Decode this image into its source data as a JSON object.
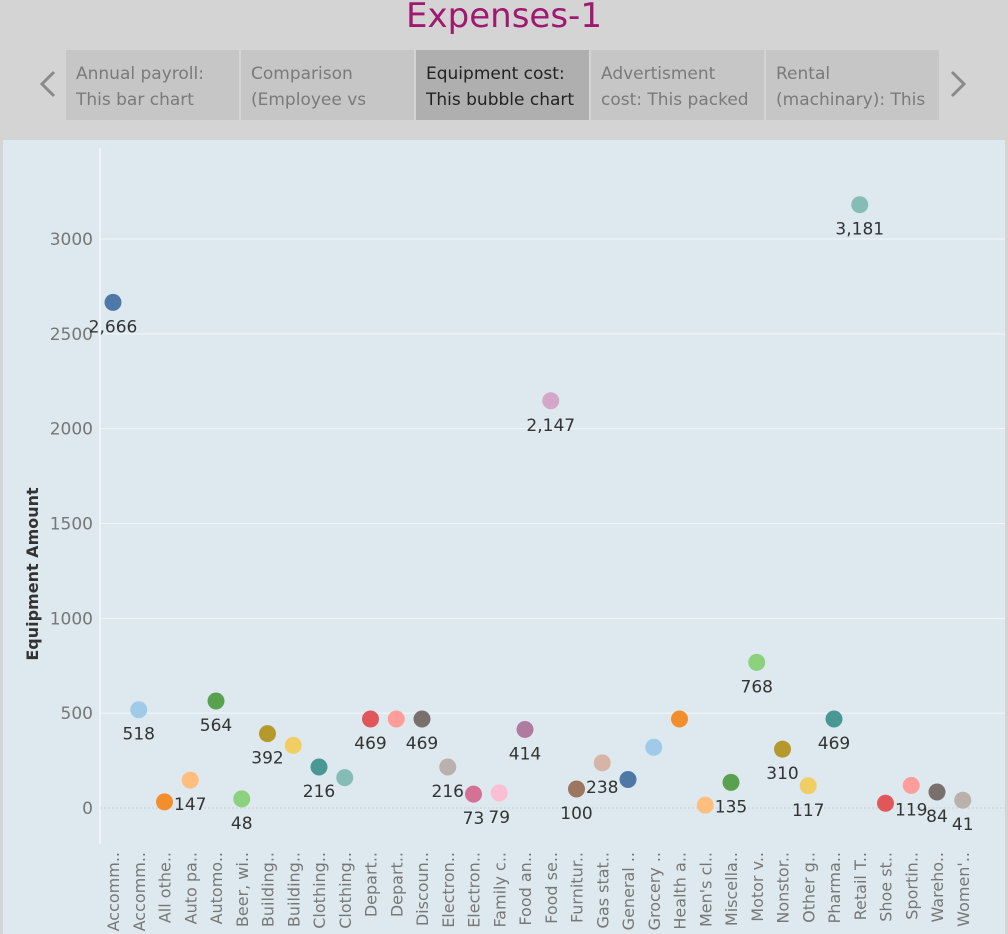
{
  "title": "Expenses-1",
  "tabs": [
    {
      "line1": "Annual payroll:",
      "line2": "This bar chart",
      "active": false
    },
    {
      "line1": "Comparison",
      "line2": "(Employee vs",
      "active": false
    },
    {
      "line1": "Equipment cost:",
      "line2": "This bubble chart",
      "active": true
    },
    {
      "line1": "Advertisment",
      "line2": "cost: This packed",
      "active": false
    },
    {
      "line1": "Rental",
      "line2": "(machinary): This",
      "active": false
    }
  ],
  "icons": {
    "prev": "chevron-left-icon",
    "next": "chevron-right-icon"
  },
  "colors": {
    "title": "#a01870",
    "panel_bg": "#dde9ef"
  },
  "chart_data": {
    "type": "scatter",
    "ylabel": "Equipment Amount",
    "ylim": [
      -190,
      3480
    ],
    "yticks": [
      0,
      500,
      1000,
      1500,
      2000,
      2500,
      3000
    ],
    "grid": true,
    "categories": [
      "Accomm..",
      "Accomm..",
      "All othe..",
      "Auto pa..",
      "Automo..",
      "Beer, wi..",
      "Building..",
      "Building..",
      "Clothing..",
      "Clothing..",
      "Depart..",
      "Depart..",
      "Discoun..",
      "Electron..",
      "Electron..",
      "Family c..",
      "Food an..",
      "Food se..",
      "Furnitur..",
      "Gas stat..",
      "General ..",
      "Grocery ..",
      "Health a..",
      "Men's cl..",
      "Miscella..",
      "Motor v..",
      "Nonstor..",
      "Other g..",
      "Pharma..",
      "Retail T..",
      "Shoe st..",
      "Sportin..",
      "Wareho..",
      "Women'.."
    ],
    "values": [
      2666,
      518,
      32,
      147,
      564,
      48,
      392,
      330,
      216,
      160,
      469,
      469,
      469,
      216,
      73,
      79,
      414,
      2147,
      100,
      238,
      150,
      320,
      469,
      15,
      135,
      768,
      310,
      117,
      469,
      3181,
      25,
      119,
      84,
      41
    ],
    "labels": [
      "2,666",
      "518",
      "",
      "147",
      "564",
      "48",
      "392",
      "",
      "216",
      "",
      "469",
      "",
      "469",
      "216",
      "73",
      "79",
      "414",
      "2,147",
      "100",
      "238",
      "",
      "",
      "",
      "",
      "135",
      "768",
      "310",
      "117",
      "469",
      "3,181",
      "",
      "119",
      "84",
      "41"
    ],
    "colors": [
      "#4e79a7",
      "#a0cbe8",
      "#f28e2b",
      "#ffbe7d",
      "#59a14f",
      "#8cd17d",
      "#b6992d",
      "#f1ce63",
      "#499894",
      "#86bcb6",
      "#e15759",
      "#ff9d9a",
      "#79706e",
      "#bab0ac",
      "#d37295",
      "#fabfd2",
      "#b07aa1",
      "#d4a6c8",
      "#9d7660",
      "#d7b5a6",
      "#4e79a7",
      "#a0cbe8",
      "#f28e2b",
      "#ffbe7d",
      "#59a14f",
      "#8cd17d",
      "#b6992d",
      "#f1ce63",
      "#499894",
      "#86bcb6",
      "#e15759",
      "#ff9d9a",
      "#79706e",
      "#bab0ac"
    ]
  }
}
